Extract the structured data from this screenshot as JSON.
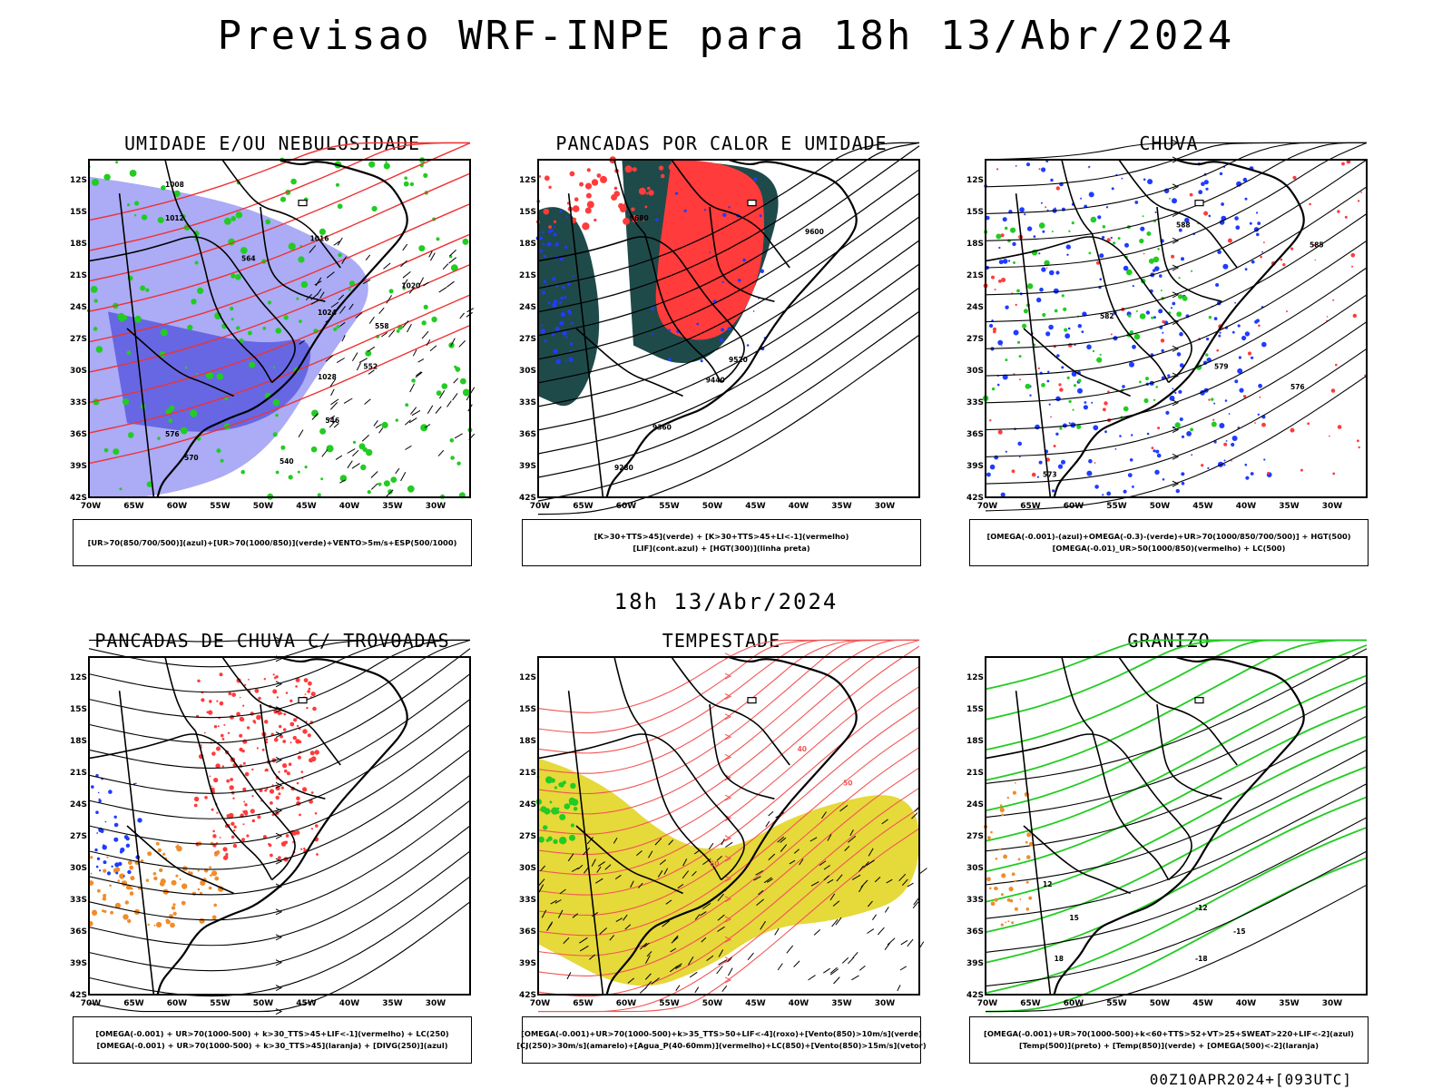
{
  "header": {
    "title": "Previsao WRF-INPE  para 18h 13/Abr/2024"
  },
  "middle_date": "18h 13/Abr/2024",
  "footer": {
    "run": "00Z10APR2024+[093UTC]"
  },
  "axes": {
    "lat_labels": [
      "12S",
      "15S",
      "18S",
      "21S",
      "24S",
      "27S",
      "30S",
      "33S",
      "36S",
      "39S",
      "42S"
    ],
    "lon_labels": [
      "70W",
      "65W",
      "60W",
      "55W",
      "50W",
      "45W",
      "40W",
      "35W",
      "30W"
    ]
  },
  "colors": {
    "blue": "#1f3cff",
    "light_blue": "#9c9cf5",
    "green": "#22cc22",
    "red": "#ff3b3b",
    "dark_teal": "#1f4a4a",
    "orange": "#f08c2a",
    "yellow": "#e6d93a",
    "pink_red": "#f25555"
  },
  "panels": [
    {
      "id": "umidade",
      "title": "UMIDADE E/OU NEBULOSIDADE",
      "legend": [
        "[UR>70(850/700/500)](azul)+[UR>70(1000/850)](verde)+VENTO>5m/s+ESP(500/1000)"
      ],
      "contour_labels": [
        "1008",
        "1012",
        "1016",
        "1020",
        "1024",
        "1028",
        "576",
        "570",
        "564",
        "558",
        "552",
        "546",
        "540"
      ]
    },
    {
      "id": "pancadas_calor",
      "title": "PANCADAS POR CALOR E UMIDADE",
      "legend": [
        "[K>30+TTS>45](verde) + [K>30+TTS>45+LI<-1](vermelho)",
        "[LIF](cont.azul) + [HGT(300)](linha preta)"
      ],
      "contour_labels": [
        "9680",
        "9600",
        "9520",
        "9440",
        "9360",
        "9280"
      ]
    },
    {
      "id": "chuva",
      "title": "CHUVA",
      "legend": [
        "[OMEGA(-0.001)-(azul)+OMEGA(-0.3)-(verde)+UR>70(1000/850/700/500)] + HGT(500)",
        "[OMEGA(-0.01)_UR>50(1000/850)(vermelho) + LC(500)"
      ],
      "contour_labels": [
        "588",
        "585",
        "582",
        "579",
        "576",
        "573"
      ]
    },
    {
      "id": "trovoadas",
      "title": "PANCADAS DE CHUVA C/ TROVOADAS",
      "legend": [
        "[OMEGA(-0.001) + UR>70(1000-500) + k>30_TTS>45+LIF<-1](vermelho) + LC(250)",
        "[OMEGA(-0.001) + UR>70(1000-500) + k>30_TTS>45](laranja) + [DIVG(250)](azul)"
      ],
      "contour_labels": []
    },
    {
      "id": "tempestade",
      "title": "TEMPESTADE",
      "legend": [
        "[OMEGA(-0.001)+UR>70(1000-500)+k>35_TTS>50+LIF<-4](roxo)+[Vento(850)>10m/s](verde)",
        "[CJ(250)>30m/s](amarelo)+[Agua_P(40-60mm)](vermelho)+LC(850)+[Vento(850)>15m/s](vetor)"
      ],
      "contour_labels": [
        "40",
        "50",
        "60"
      ]
    },
    {
      "id": "granizo",
      "title": "GRANIZO",
      "legend": [
        "[OMEGA(-0.001)+UR>70(1000-500)+k<60+TTS>52+VT>25+SWEAT>220+LIF<-2](azul)",
        "[Temp(500)](preto) + [Temp(850)](verde) + [OMEGA(500)<-2](laranja)"
      ],
      "contour_labels": [
        "-12",
        "-15",
        "-18",
        "12",
        "15",
        "18"
      ]
    }
  ]
}
